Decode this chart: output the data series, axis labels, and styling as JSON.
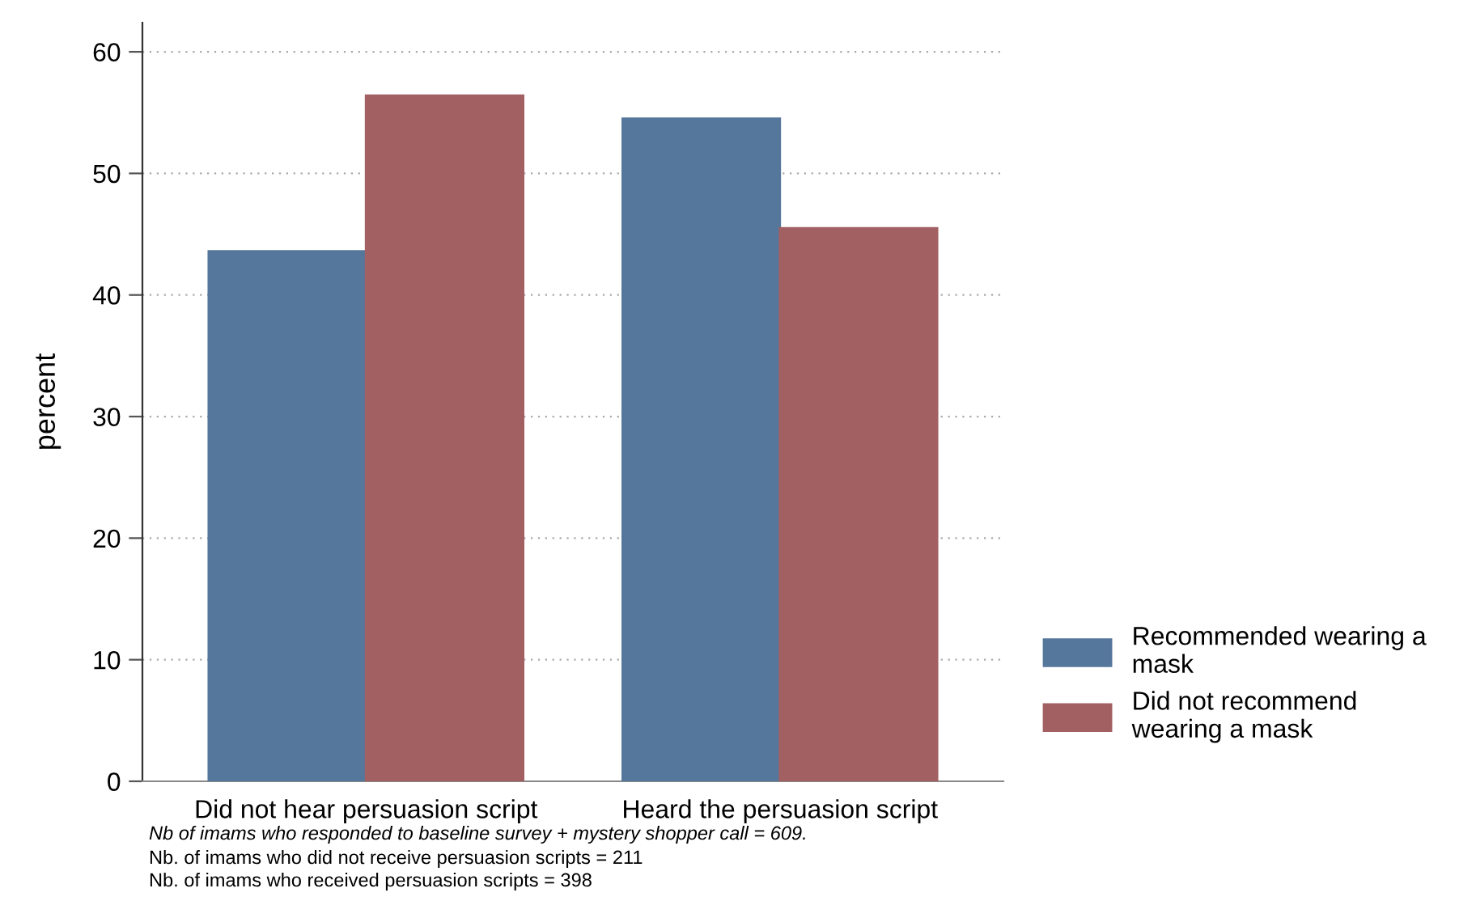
{
  "chart_data": {
    "type": "bar",
    "ylabel": "percent",
    "categories": [
      "Did not hear persuasion script",
      "Heard the persuasion script"
    ],
    "series": [
      {
        "name": "Recommended wearing a mask",
        "color": "#55779b",
        "values": [
          43.6,
          54.5
        ]
      },
      {
        "name": "Did not recommend wearing a mask",
        "color": "#a26062",
        "values": [
          56.4,
          45.5
        ]
      }
    ],
    "ylim": [
      0,
      62.4
    ],
    "yticks": [
      0,
      10,
      20,
      30,
      40,
      50,
      60
    ],
    "grid": "y",
    "legend": "right",
    "annotations": [
      "Nb of imams who responded to baseline survey + mystery shopper call = 609.",
      "Nb. of imams who did not receive persuasion scripts = 211",
      "Nb. of imams who received persuasion scripts = 398"
    ]
  }
}
